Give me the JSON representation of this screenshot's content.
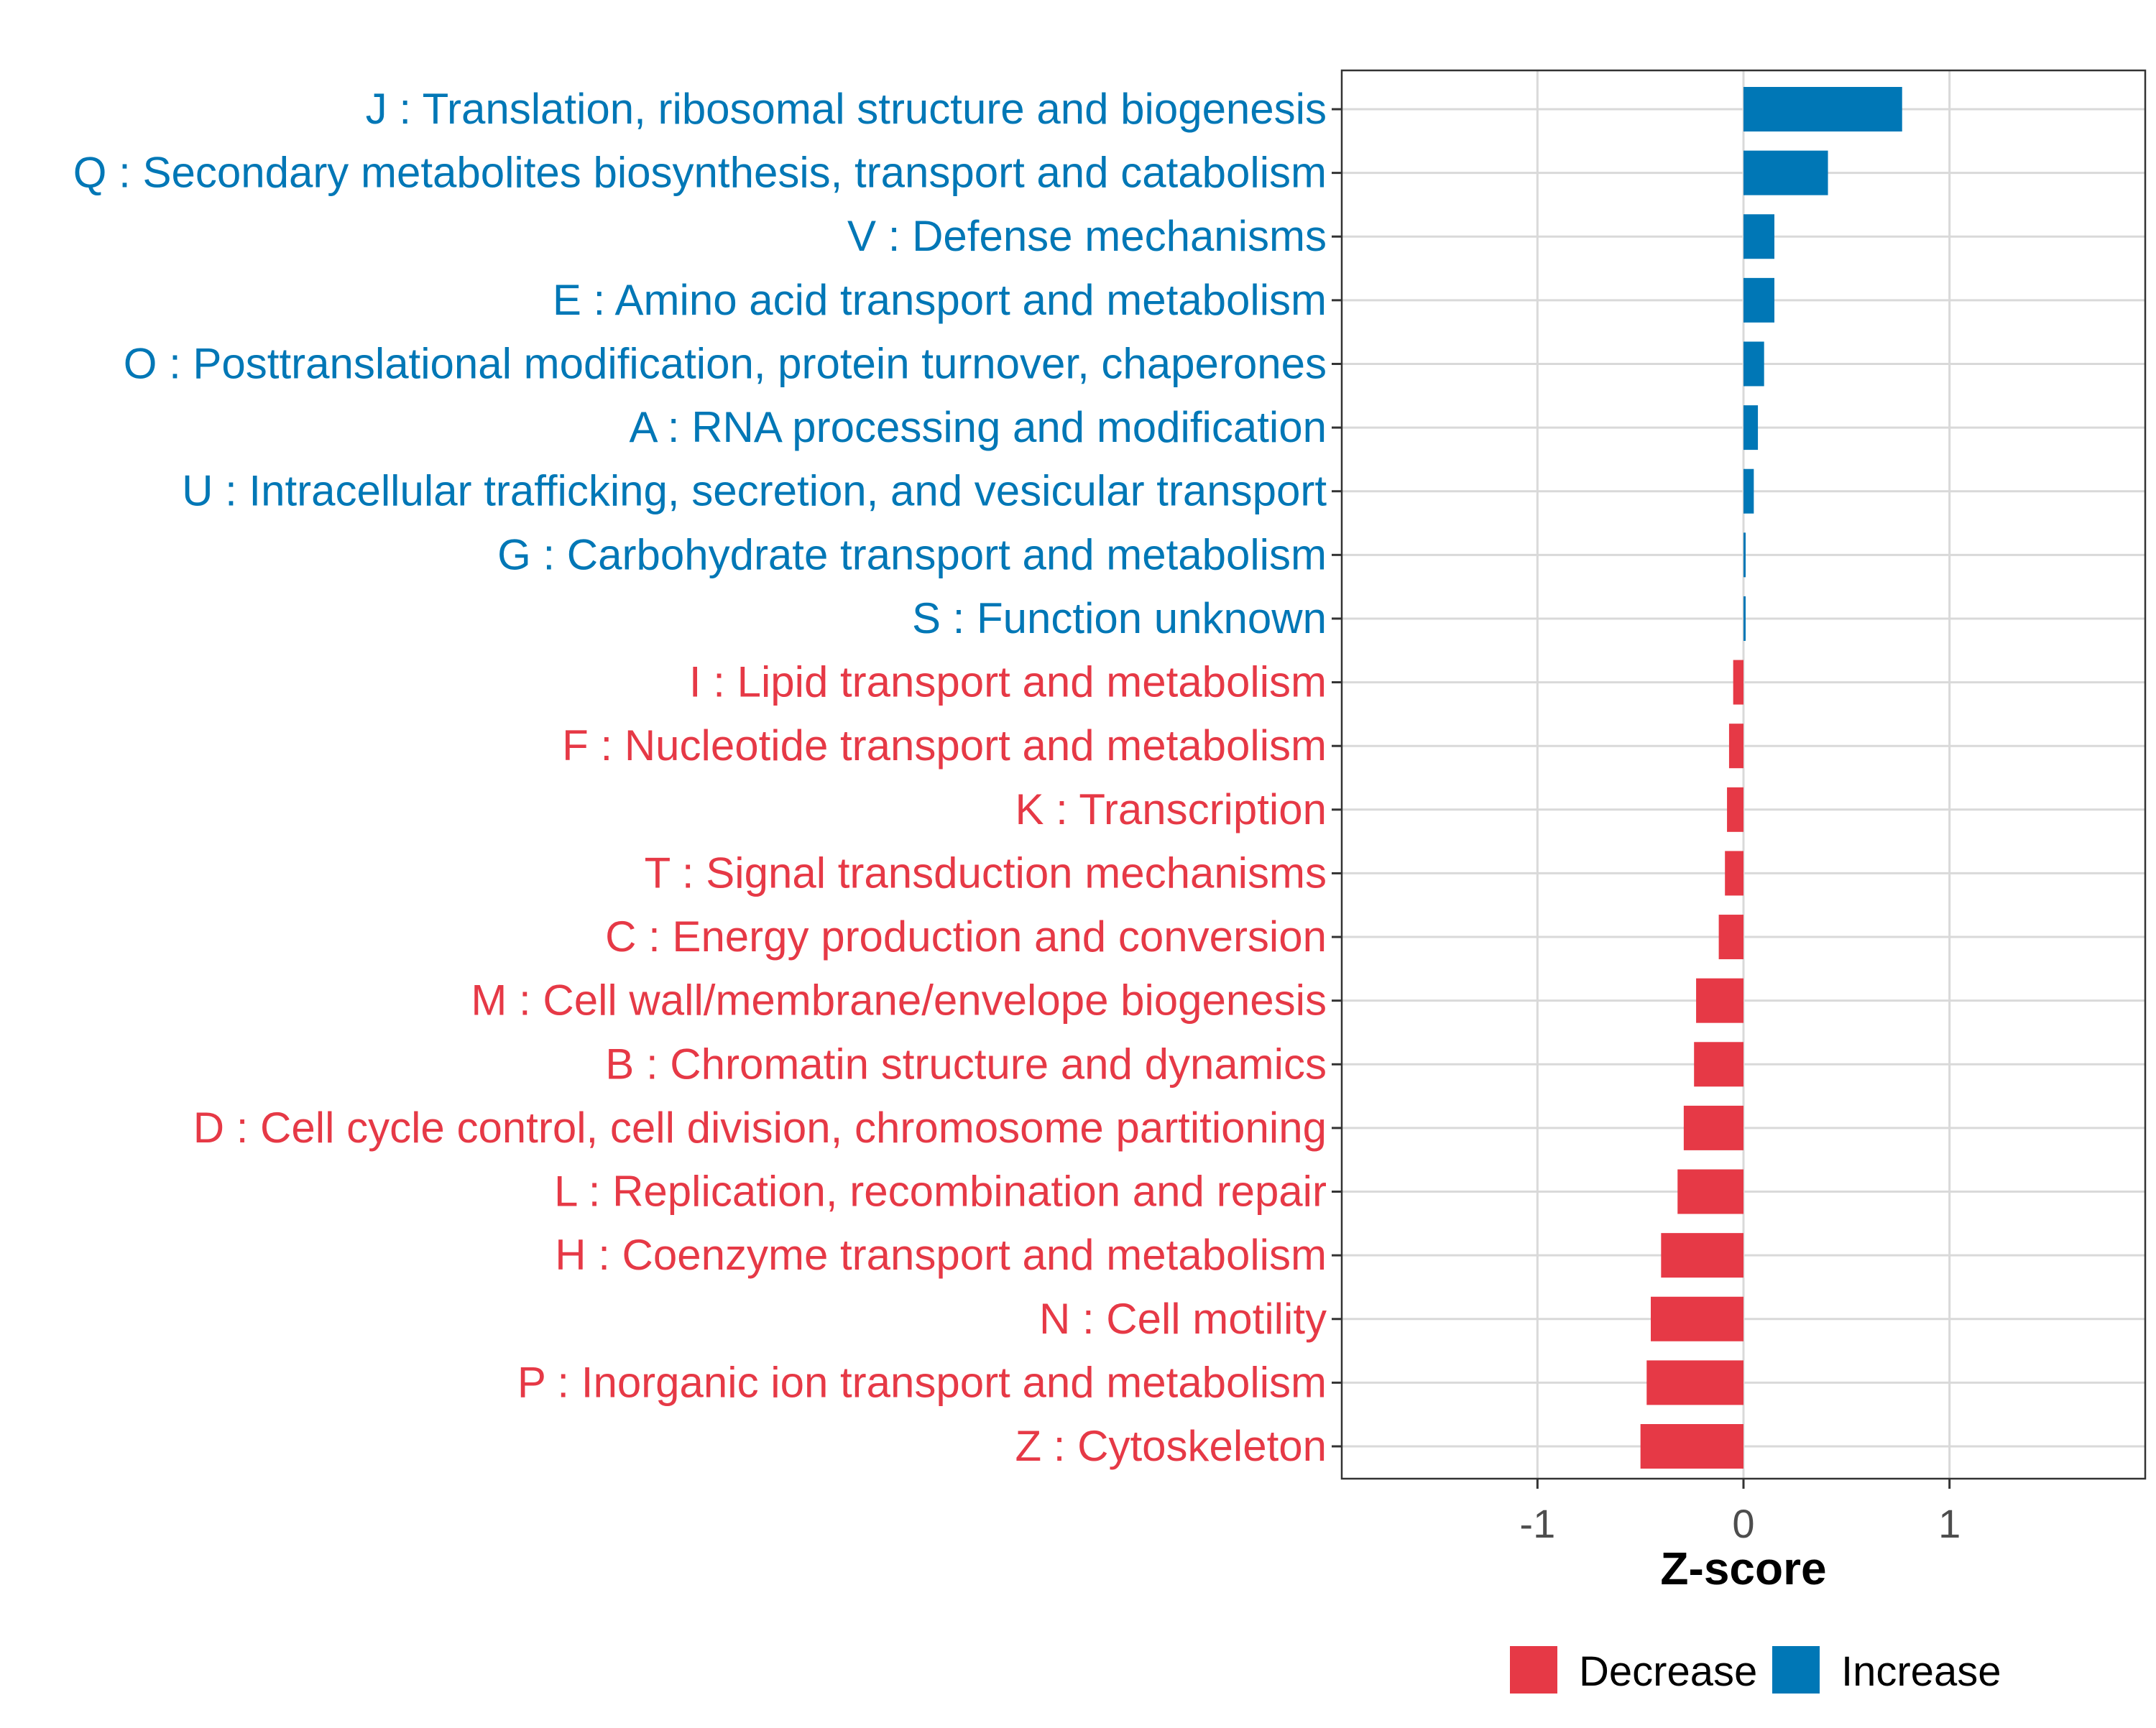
{
  "chart_data": {
    "type": "bar",
    "orientation": "horizontal",
    "categories": [
      "J : Translation, ribosomal structure and biogenesis",
      "Q : Secondary metabolites biosynthesis, transport and catabolism",
      "V : Defense mechanisms",
      "E : Amino acid transport and metabolism",
      "O : Posttranslational modification, protein turnover, chaperones",
      "A : RNA processing and modification",
      "U : Intracellular trafficking, secretion, and vesicular transport",
      "G : Carbohydrate transport and metabolism",
      "S : Function unknown",
      "I : Lipid transport and metabolism",
      "F : Nucleotide transport and metabolism",
      "K : Transcription",
      "T : Signal transduction mechanisms",
      "C : Energy production and conversion",
      "M : Cell wall/membrane/envelope biogenesis",
      "B : Chromatin structure and dynamics",
      "D : Cell cycle control, cell division, chromosome partitioning",
      "L : Replication, recombination and repair",
      "H : Coenzyme transport and metabolism",
      "N : Cell motility",
      "P : Inorganic ion transport and metabolism",
      "Z : Cytoskeleton"
    ],
    "values": [
      0.77,
      0.41,
      0.15,
      0.15,
      0.1,
      0.07,
      0.05,
      0.01,
      0.01,
      -0.05,
      -0.07,
      -0.08,
      -0.09,
      -0.12,
      -0.23,
      -0.24,
      -0.29,
      -0.32,
      -0.4,
      -0.45,
      -0.47,
      -0.5
    ],
    "groups": [
      "Increase",
      "Increase",
      "Increase",
      "Increase",
      "Increase",
      "Increase",
      "Increase",
      "Increase",
      "Increase",
      "Decrease",
      "Decrease",
      "Decrease",
      "Decrease",
      "Decrease",
      "Decrease",
      "Decrease",
      "Decrease",
      "Decrease",
      "Decrease",
      "Decrease",
      "Decrease",
      "Decrease"
    ],
    "title": "",
    "xlabel": "Z-score",
    "ylabel": "",
    "xlim": [
      -1.95,
      1.95
    ],
    "xticks": [
      -1,
      0,
      1
    ],
    "xtick_labels": [
      "-1",
      "0",
      "1"
    ],
    "grid": true,
    "legend": {
      "placement": "bottom",
      "entries": [
        {
          "name": "Decrease",
          "color": "#e63946"
        },
        {
          "name": "Increase",
          "color": "#0077b6"
        }
      ]
    },
    "colors": {
      "Increase": "#0077b6",
      "Decrease": "#e63946",
      "grid": "#d9d9d9",
      "axis": "#333333",
      "tick_text": "#4d4d4d"
    }
  }
}
